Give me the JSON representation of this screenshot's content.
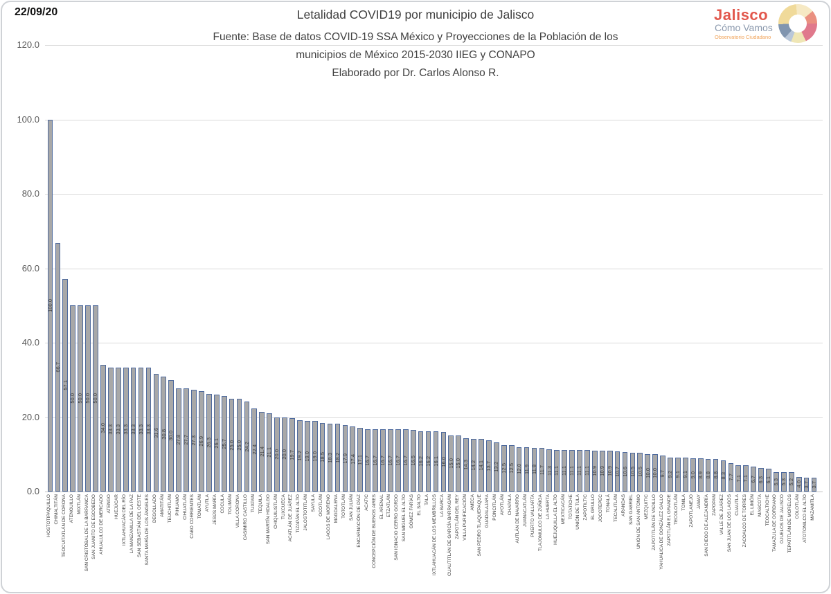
{
  "header": {
    "date": "22/09/20"
  },
  "logo": {
    "line1": "Jalisco",
    "line2": "Cómo Vamos",
    "line3": "Observatorio Ciudadano"
  },
  "chart_data": {
    "type": "bar",
    "title": "Letalidad COVID19 por municipio de Jalisco",
    "subtitle1": "Fuente: Base de datos COVID-19 SSA México y Proyecciones de la Población de los",
    "subtitle2": "municipios de México 2015-2030 IIEG y CONAPO",
    "subtitle3": "Elaborado por Dr. Carlos Alonso R.",
    "xlabel": "",
    "ylabel": "",
    "ylim": [
      0,
      120
    ],
    "yticks": [
      120,
      100,
      80,
      60,
      40,
      20,
      0
    ],
    "grid": true,
    "legend": "none",
    "bar_fill": "#a8a8a8",
    "bar_border": "#4e6a9e",
    "categories": [
      "HOSTOTIPAQUILLO",
      "CHIMALTITÁN",
      "TEOCUITATLÁN DE CORONA",
      "ATENGUILLO",
      "MIXTLÁN",
      "SAN CRISTÓBAL DE LA BARRANCA",
      "SAN JUANITO DE ESCOBEDO",
      "AHUALULCO DE MERCADO",
      "ATENGO",
      "HUEJÚCAR",
      "IXTLAHUACÁN DEL RÍO",
      "LA MANZANILLA DE LA PAZ",
      "SAN SEBASTIÁN DEL OESTE",
      "SANTA MARÍA DE LOS ÁNGELES",
      "DEGOLLADO",
      "AMATITÁN",
      "TEUCHITLÁN",
      "PIHUAMO",
      "CIHUATLÁN",
      "CABO CORRIENTES",
      "TOMATLÁN",
      "AYUTLA",
      "JESÚS MARÍA",
      "COCULA",
      "TOLIMÁN",
      "VILLA CORONA",
      "CASIMIRO CASTILLO",
      "TUXPAN",
      "TEQUILA",
      "SAN MARTÍN HIDALGO",
      "CHIQUILISTLÁN",
      "TUXCUECA",
      "ACATLÁN DE JUÁREZ",
      "TIZAPÁN EL ALTO",
      "JALOSTOTITLÁN",
      "SAYULA",
      "OCOTLÁN",
      "LAGOS DE MORENO",
      "MAGDALENA",
      "TOTOTLÁN",
      "SAN JULIÁN",
      "ENCARNACIÓN DE DÍAZ",
      "ACATIC",
      "CONCEPCIÓN DE BUENOS AIRES",
      "EL ARENAL",
      "ETZATLÁN",
      "SAN IGNACIO CERRO GORDO",
      "SAN MIGUEL EL ALTO",
      "GÓMEZ FARÍAS",
      "EL SALTO",
      "TALA",
      "IXTLAHUACÁN DE LOS MEMBRILLOS",
      "LA BARCA",
      "CUAUTITLÁN DE GARCÍA BARRAGÁN",
      "ZAPOTLÁN DEL REY",
      "VILLA PURIFICACIÓN",
      "AMECA",
      "SAN PEDRO TLAQUEPAQUE",
      "GUADALAJARA",
      "PONCITLÁN",
      "AYOTLÁN",
      "CHAPALA",
      "AUTLÁN DE NAVARRO",
      "JUANACATLÁN",
      "PUERTO VALLARTA",
      "TLAJOMULCO DE ZÚÑIGA",
      "LA HUERTA",
      "HUEJUQUILLA EL ALTO",
      "MEXTICACÁN",
      "TOTATICHE",
      "UNIÓN DE TULA",
      "ZAPOTILTIC",
      "EL GRULLO",
      "JOCOTEPEC",
      "TONALÁ",
      "TECALITLÁN",
      "ARANDAS",
      "SAN GABRIEL",
      "UNIÓN DE SAN ANTONIO",
      "MEZQUITIC",
      "ZAPOTITLÁN DE VADILLO",
      "YAHUALICA DE GONZÁLEZ GALLO",
      "ZAPOTLÁN EL GRANDE",
      "TECOLOTLÁN",
      "TONILA",
      "ZAPOTLANEJO",
      "JAMAY",
      "SAN DIEGO DE ALEJANDRÍA",
      "ZAPOPAN",
      "VALLE DE JUÁREZ",
      "SAN JUAN DE LOS LAGOS",
      "CUAUTLA",
      "ZACOALCO DE TORRES",
      "EL LIMÓN",
      "MASCOTA",
      "TEOCALTICHE",
      "TAMAZULA DE GORDIANO",
      "OJUELOS DE JALISCO",
      "TEPATITLÁN DE MORELOS",
      "COLOTLÁN",
      "ATOTONILCO EL ALTO",
      "MAZAMITLA"
    ],
    "values": [
      100.0,
      66.7,
      57.1,
      50.0,
      50.0,
      50.0,
      50.0,
      34.0,
      33.3,
      33.3,
      33.3,
      33.3,
      33.3,
      33.3,
      31.6,
      30.8,
      30.0,
      27.8,
      27.7,
      27.3,
      26.9,
      26.3,
      26.1,
      25.7,
      25.0,
      25.0,
      24.2,
      22.4,
      21.4,
      21.1,
      20.0,
      20.0,
      19.7,
      19.2,
      19.0,
      19.0,
      18.5,
      18.3,
      18.2,
      17.9,
      17.4,
      17.1,
      16.7,
      16.7,
      16.7,
      16.7,
      16.7,
      16.7,
      16.5,
      16.2,
      16.2,
      16.1,
      16.0,
      15.0,
      15.0,
      14.3,
      14.2,
      14.1,
      13.7,
      13.2,
      12.5,
      12.5,
      12.0,
      11.9,
      11.8,
      11.7,
      11.3,
      11.1,
      11.1,
      11.1,
      11.1,
      11.1,
      10.9,
      10.9,
      10.9,
      10.7,
      10.6,
      10.5,
      10.5,
      10.0,
      10.0,
      9.7,
      9.2,
      9.1,
      9.1,
      9.0,
      8.9,
      8.8,
      8.8,
      8.3,
      7.7,
      7.1,
      7.1,
      6.7,
      6.3,
      6.1,
      5.3,
      5.3,
      5.2,
      4.0,
      3.7,
      3.7
    ]
  }
}
